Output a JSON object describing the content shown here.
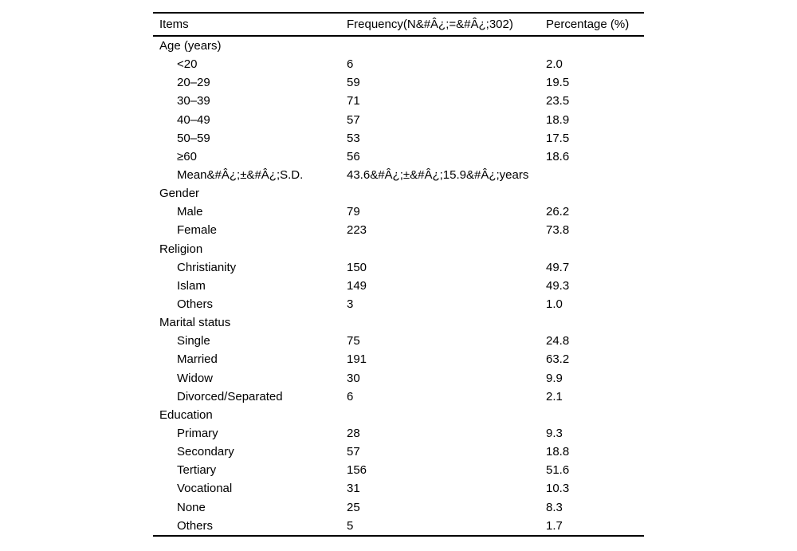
{
  "table": {
    "columns": [
      {
        "key": "items",
        "label": "Items"
      },
      {
        "key": "frequency",
        "label": "Frequency(N&#Â¿;=&#Â¿;302)"
      },
      {
        "key": "percentage",
        "label": "Percentage (%)"
      }
    ],
    "rows": [
      {
        "item": "Age (years)",
        "frequency": "",
        "percentage": "",
        "section": true
      },
      {
        "item": "<20",
        "frequency": "6",
        "percentage": "2.0",
        "section": false
      },
      {
        "item": "20–29",
        "frequency": "59",
        "percentage": "19.5",
        "section": false
      },
      {
        "item": "30–39",
        "frequency": "71",
        "percentage": "23.5",
        "section": false
      },
      {
        "item": "40–49",
        "frequency": "57",
        "percentage": "18.9",
        "section": false
      },
      {
        "item": "50–59",
        "frequency": "53",
        "percentage": "17.5",
        "section": false
      },
      {
        "item": "≥60",
        "frequency": "56",
        "percentage": "18.6",
        "section": false
      },
      {
        "item": "Mean&#Â¿;±&#Â¿;S.D.",
        "frequency": "43.6&#Â¿;±&#Â¿;15.9&#Â¿;years",
        "percentage": "",
        "section": false
      },
      {
        "item": "Gender",
        "frequency": "",
        "percentage": "",
        "section": true
      },
      {
        "item": "Male",
        "frequency": "79",
        "percentage": "26.2",
        "section": false
      },
      {
        "item": "Female",
        "frequency": "223",
        "percentage": "73.8",
        "section": false
      },
      {
        "item": "Religion",
        "frequency": "",
        "percentage": "",
        "section": true
      },
      {
        "item": "Christianity",
        "frequency": "150",
        "percentage": "49.7",
        "section": false
      },
      {
        "item": "Islam",
        "frequency": "149",
        "percentage": "49.3",
        "section": false
      },
      {
        "item": "Others",
        "frequency": "3",
        "percentage": "1.0",
        "section": false
      },
      {
        "item": "Marital status",
        "frequency": "",
        "percentage": "",
        "section": true
      },
      {
        "item": "Single",
        "frequency": "75",
        "percentage": "24.8",
        "section": false
      },
      {
        "item": "Married",
        "frequency": "191",
        "percentage": "63.2",
        "section": false
      },
      {
        "item": "Widow",
        "frequency": "30",
        "percentage": "9.9",
        "section": false
      },
      {
        "item": "Divorced/Separated",
        "frequency": "6",
        "percentage": "2.1",
        "section": false
      },
      {
        "item": "Education",
        "frequency": "",
        "percentage": "",
        "section": true
      },
      {
        "item": "Primary",
        "frequency": "28",
        "percentage": "9.3",
        "section": false
      },
      {
        "item": "Secondary",
        "frequency": "57",
        "percentage": "18.8",
        "section": false
      },
      {
        "item": "Tertiary",
        "frequency": "156",
        "percentage": "51.6",
        "section": false
      },
      {
        "item": "Vocational",
        "frequency": "31",
        "percentage": "10.3",
        "section": false
      },
      {
        "item": "None",
        "frequency": "25",
        "percentage": "8.3",
        "section": false
      },
      {
        "item": "Others",
        "frequency": "5",
        "percentage": "1.7",
        "section": false
      }
    ],
    "text_color": "#000000",
    "rule_color": "#000000",
    "background_color": "#ffffff"
  }
}
